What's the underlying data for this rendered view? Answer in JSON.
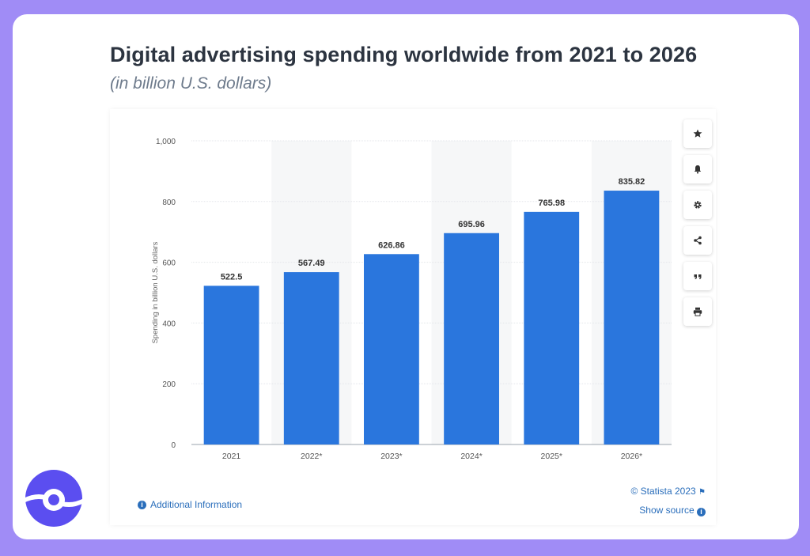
{
  "header": {
    "title": "Digital advertising spending worldwide from 2021 to 2026",
    "subtitle": "(in billion U.S. dollars)"
  },
  "chart_data": {
    "type": "bar",
    "categories": [
      "2021",
      "2022*",
      "2023*",
      "2024*",
      "2025*",
      "2026*"
    ],
    "values": [
      522.5,
      567.49,
      626.86,
      695.96,
      765.98,
      835.82
    ],
    "value_labels": [
      "522.5",
      "567.49",
      "626.86",
      "695.96",
      "765.98",
      "835.82"
    ],
    "ylabel": "Spending in billion U.S. dollars",
    "xlabel": "",
    "ylim": [
      0,
      1000
    ],
    "yticks": [
      0,
      200,
      400,
      600,
      800,
      1000
    ],
    "ytick_labels": [
      "0",
      "200",
      "400",
      "600",
      "800",
      "1,000"
    ],
    "grid": true,
    "forecast_shading": true,
    "bar_color": "#2a76dd"
  },
  "toolbar": {
    "buttons": [
      {
        "name": "star-icon"
      },
      {
        "name": "bell-icon"
      },
      {
        "name": "gear-icon"
      },
      {
        "name": "share-icon"
      },
      {
        "name": "quote-icon"
      },
      {
        "name": "print-icon"
      }
    ]
  },
  "footer": {
    "additional_info": "Additional Information",
    "copyright": "© Statista 2023",
    "show_source": "Show source"
  }
}
